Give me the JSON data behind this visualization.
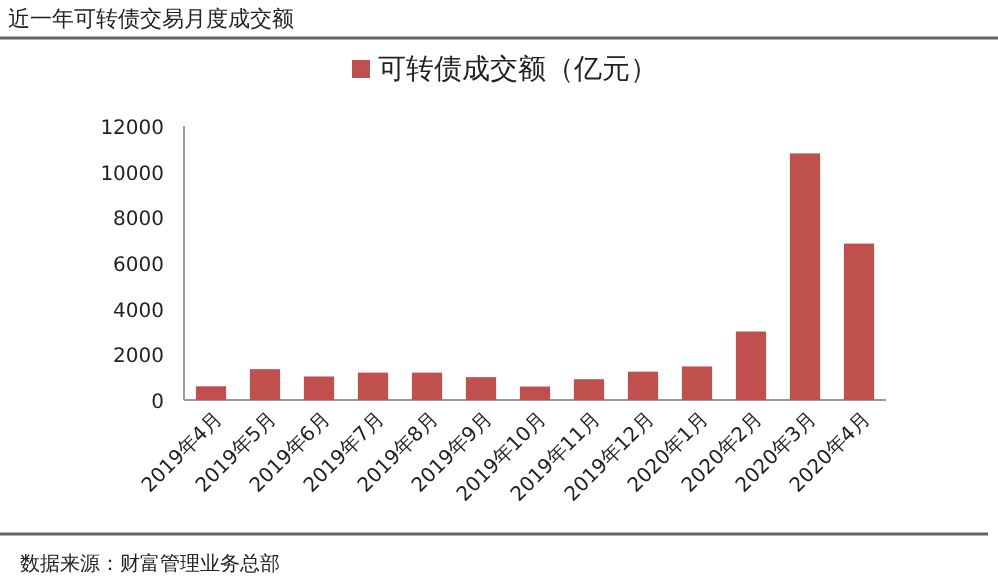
{
  "chart_data": {
    "type": "bar",
    "title": "近一年可转债交易月度成交额",
    "categories": [
      "2019年4月",
      "2019年5月",
      "2019年6月",
      "2019年7月",
      "2019年8月",
      "2019年9月",
      "2019年10月",
      "2019年11月",
      "2019年12月",
      "2020年1月",
      "2020年2月",
      "2020年3月",
      "2020年4月"
    ],
    "series": [
      {
        "name": "可转债成交额（亿元）",
        "color": "#c0504d",
        "values": [
          600,
          1350,
          1030,
          1200,
          1200,
          1000,
          590,
          910,
          1240,
          1470,
          3000,
          10800,
          6850
        ]
      }
    ],
    "ylim": [
      0,
      12000
    ],
    "yticks": [
      0,
      2000,
      4000,
      6000,
      8000,
      10000,
      12000
    ],
    "legend": "top",
    "grid": false,
    "annotations": [
      "数据来源：财富管理业务总部"
    ]
  }
}
